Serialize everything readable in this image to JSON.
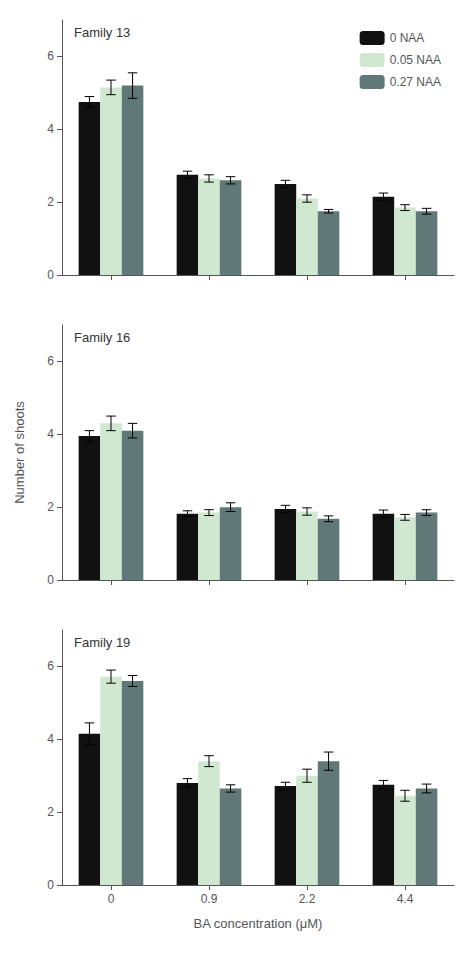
{
  "chart_data": [
    {
      "type": "bar",
      "annotation": "Family 13",
      "categories": [
        "0",
        "0.9",
        "2.2",
        "4.4"
      ],
      "tick_labels": "y",
      "legend": "upper right",
      "grid": false,
      "ylim": [
        0,
        7
      ],
      "yticks": [
        0,
        2,
        4,
        6
      ],
      "series": [
        {
          "name": "0 NAA",
          "color": "#111111",
          "values": [
            4.75,
            2.75,
            2.5,
            2.15
          ],
          "errors": [
            0.15,
            0.1,
            0.1,
            0.1
          ]
        },
        {
          "name": "0.05 NAA",
          "color": "#d0e8d0",
          "values": [
            5.15,
            2.65,
            2.1,
            1.85
          ],
          "errors": [
            0.2,
            0.1,
            0.1,
            0.08
          ]
        },
        {
          "name": "0.27 NAA",
          "color": "#607878",
          "values": [
            5.2,
            2.6,
            1.75,
            1.75
          ],
          "errors": [
            0.35,
            0.1,
            0.05,
            0.08
          ]
        }
      ]
    },
    {
      "type": "bar",
      "annotation": "Family 16",
      "categories": [
        "0",
        "0.9",
        "2.2",
        "4.4"
      ],
      "tick_labels": "y",
      "grid": false,
      "ylabel": "Number of shoots",
      "ylim": [
        0,
        7
      ],
      "yticks": [
        0,
        2,
        4,
        6
      ],
      "series": [
        {
          "name": "0 NAA",
          "color": "#111111",
          "values": [
            3.95,
            1.82,
            1.95,
            1.82
          ],
          "errors": [
            0.15,
            0.08,
            0.1,
            0.1
          ]
        },
        {
          "name": "0.05 NAA",
          "color": "#d0e8d0",
          "values": [
            4.3,
            1.85,
            1.88,
            1.72
          ],
          "errors": [
            0.2,
            0.08,
            0.1,
            0.08
          ]
        },
        {
          "name": "0.27 NAA",
          "color": "#607878",
          "values": [
            4.1,
            2.0,
            1.68,
            1.85
          ],
          "errors": [
            0.2,
            0.12,
            0.08,
            0.08
          ]
        }
      ]
    },
    {
      "type": "bar",
      "annotation": "Family 19",
      "categories": [
        "0",
        "0.9",
        "2.2",
        "4.4"
      ],
      "grid": false,
      "xlabel": "BA concentration (μM)",
      "ylim": [
        0,
        7
      ],
      "yticks": [
        0,
        2,
        4,
        6
      ],
      "series": [
        {
          "name": "0 NAA",
          "color": "#111111",
          "values": [
            4.15,
            2.8,
            2.72,
            2.75
          ],
          "errors": [
            0.3,
            0.12,
            0.1,
            0.12
          ]
        },
        {
          "name": "0.05 NAA",
          "color": "#d0e8d0",
          "values": [
            5.72,
            3.4,
            3.0,
            2.45
          ],
          "errors": [
            0.18,
            0.15,
            0.18,
            0.15
          ]
        },
        {
          "name": "0.27 NAA",
          "color": "#607878",
          "values": [
            5.6,
            2.65,
            3.4,
            2.65
          ],
          "errors": [
            0.15,
            0.1,
            0.25,
            0.12
          ]
        }
      ]
    }
  ]
}
